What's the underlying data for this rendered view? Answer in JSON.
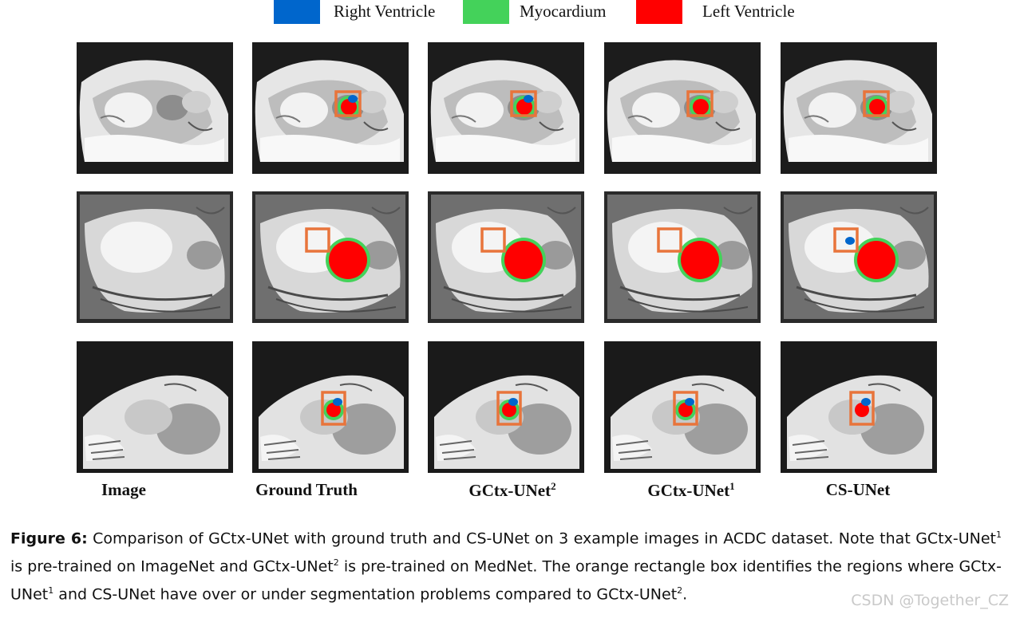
{
  "legend": [
    {
      "label": "Right Ventricle",
      "color": "#0066cc"
    },
    {
      "label": "Myocardium",
      "color": "#44d25a"
    },
    {
      "label": "Left Ventricle",
      "color": "#ff0000"
    }
  ],
  "columns": [
    {
      "label": "Image",
      "sup": ""
    },
    {
      "label": "Ground Truth",
      "sup": ""
    },
    {
      "label": "GCtx-UNet",
      "sup": "2"
    },
    {
      "label": "GCtx-UNet",
      "sup": "1"
    },
    {
      "label": "CS-UNet",
      "sup": ""
    }
  ],
  "rows": [
    {
      "name": "example-1",
      "masks": [
        null,
        {
          "rv": true,
          "myo": true,
          "lv": true
        },
        {
          "rv": true,
          "myo": true,
          "lv": true
        },
        {
          "rv": false,
          "myo": true,
          "lv": true
        },
        {
          "rv": false,
          "myo": true,
          "lv": true
        }
      ]
    },
    {
      "name": "example-2",
      "masks": [
        null,
        {
          "rv": false,
          "myo": true,
          "lv": true
        },
        {
          "rv": false,
          "myo": true,
          "lv": true
        },
        {
          "rv": false,
          "myo": true,
          "lv": true
        },
        {
          "rv": true,
          "myo": true,
          "lv": true
        }
      ]
    },
    {
      "name": "example-3",
      "masks": [
        null,
        {
          "rv": true,
          "myo": true,
          "lv": true
        },
        {
          "rv": true,
          "myo": true,
          "lv": true
        },
        {
          "rv": true,
          "myo": true,
          "lv": true
        },
        {
          "rv": true,
          "myo": false,
          "lv": true
        }
      ]
    }
  ],
  "highlight_color": "#e8743b",
  "caption": {
    "figure_label": "Figure 6:",
    "t1": " Comparison of GCtx-UNet with ground truth and CS-UNet on 3 example images in ACDC dataset. Note that GCtx-UNet",
    "s1": "1",
    "t2": " is pre-trained on ImageNet and GCtx-UNet",
    "s2": "2",
    "t3": " is pre-trained on MedNet. The orange rectangle box identifies the regions where GCtx-UNet",
    "s3": "1",
    "t4": " and CS-UNet have over or under segmentation problems compared to GCtx-UNet",
    "s4": "2",
    "t5": "."
  },
  "watermark": "CSDN @Together_CZ"
}
